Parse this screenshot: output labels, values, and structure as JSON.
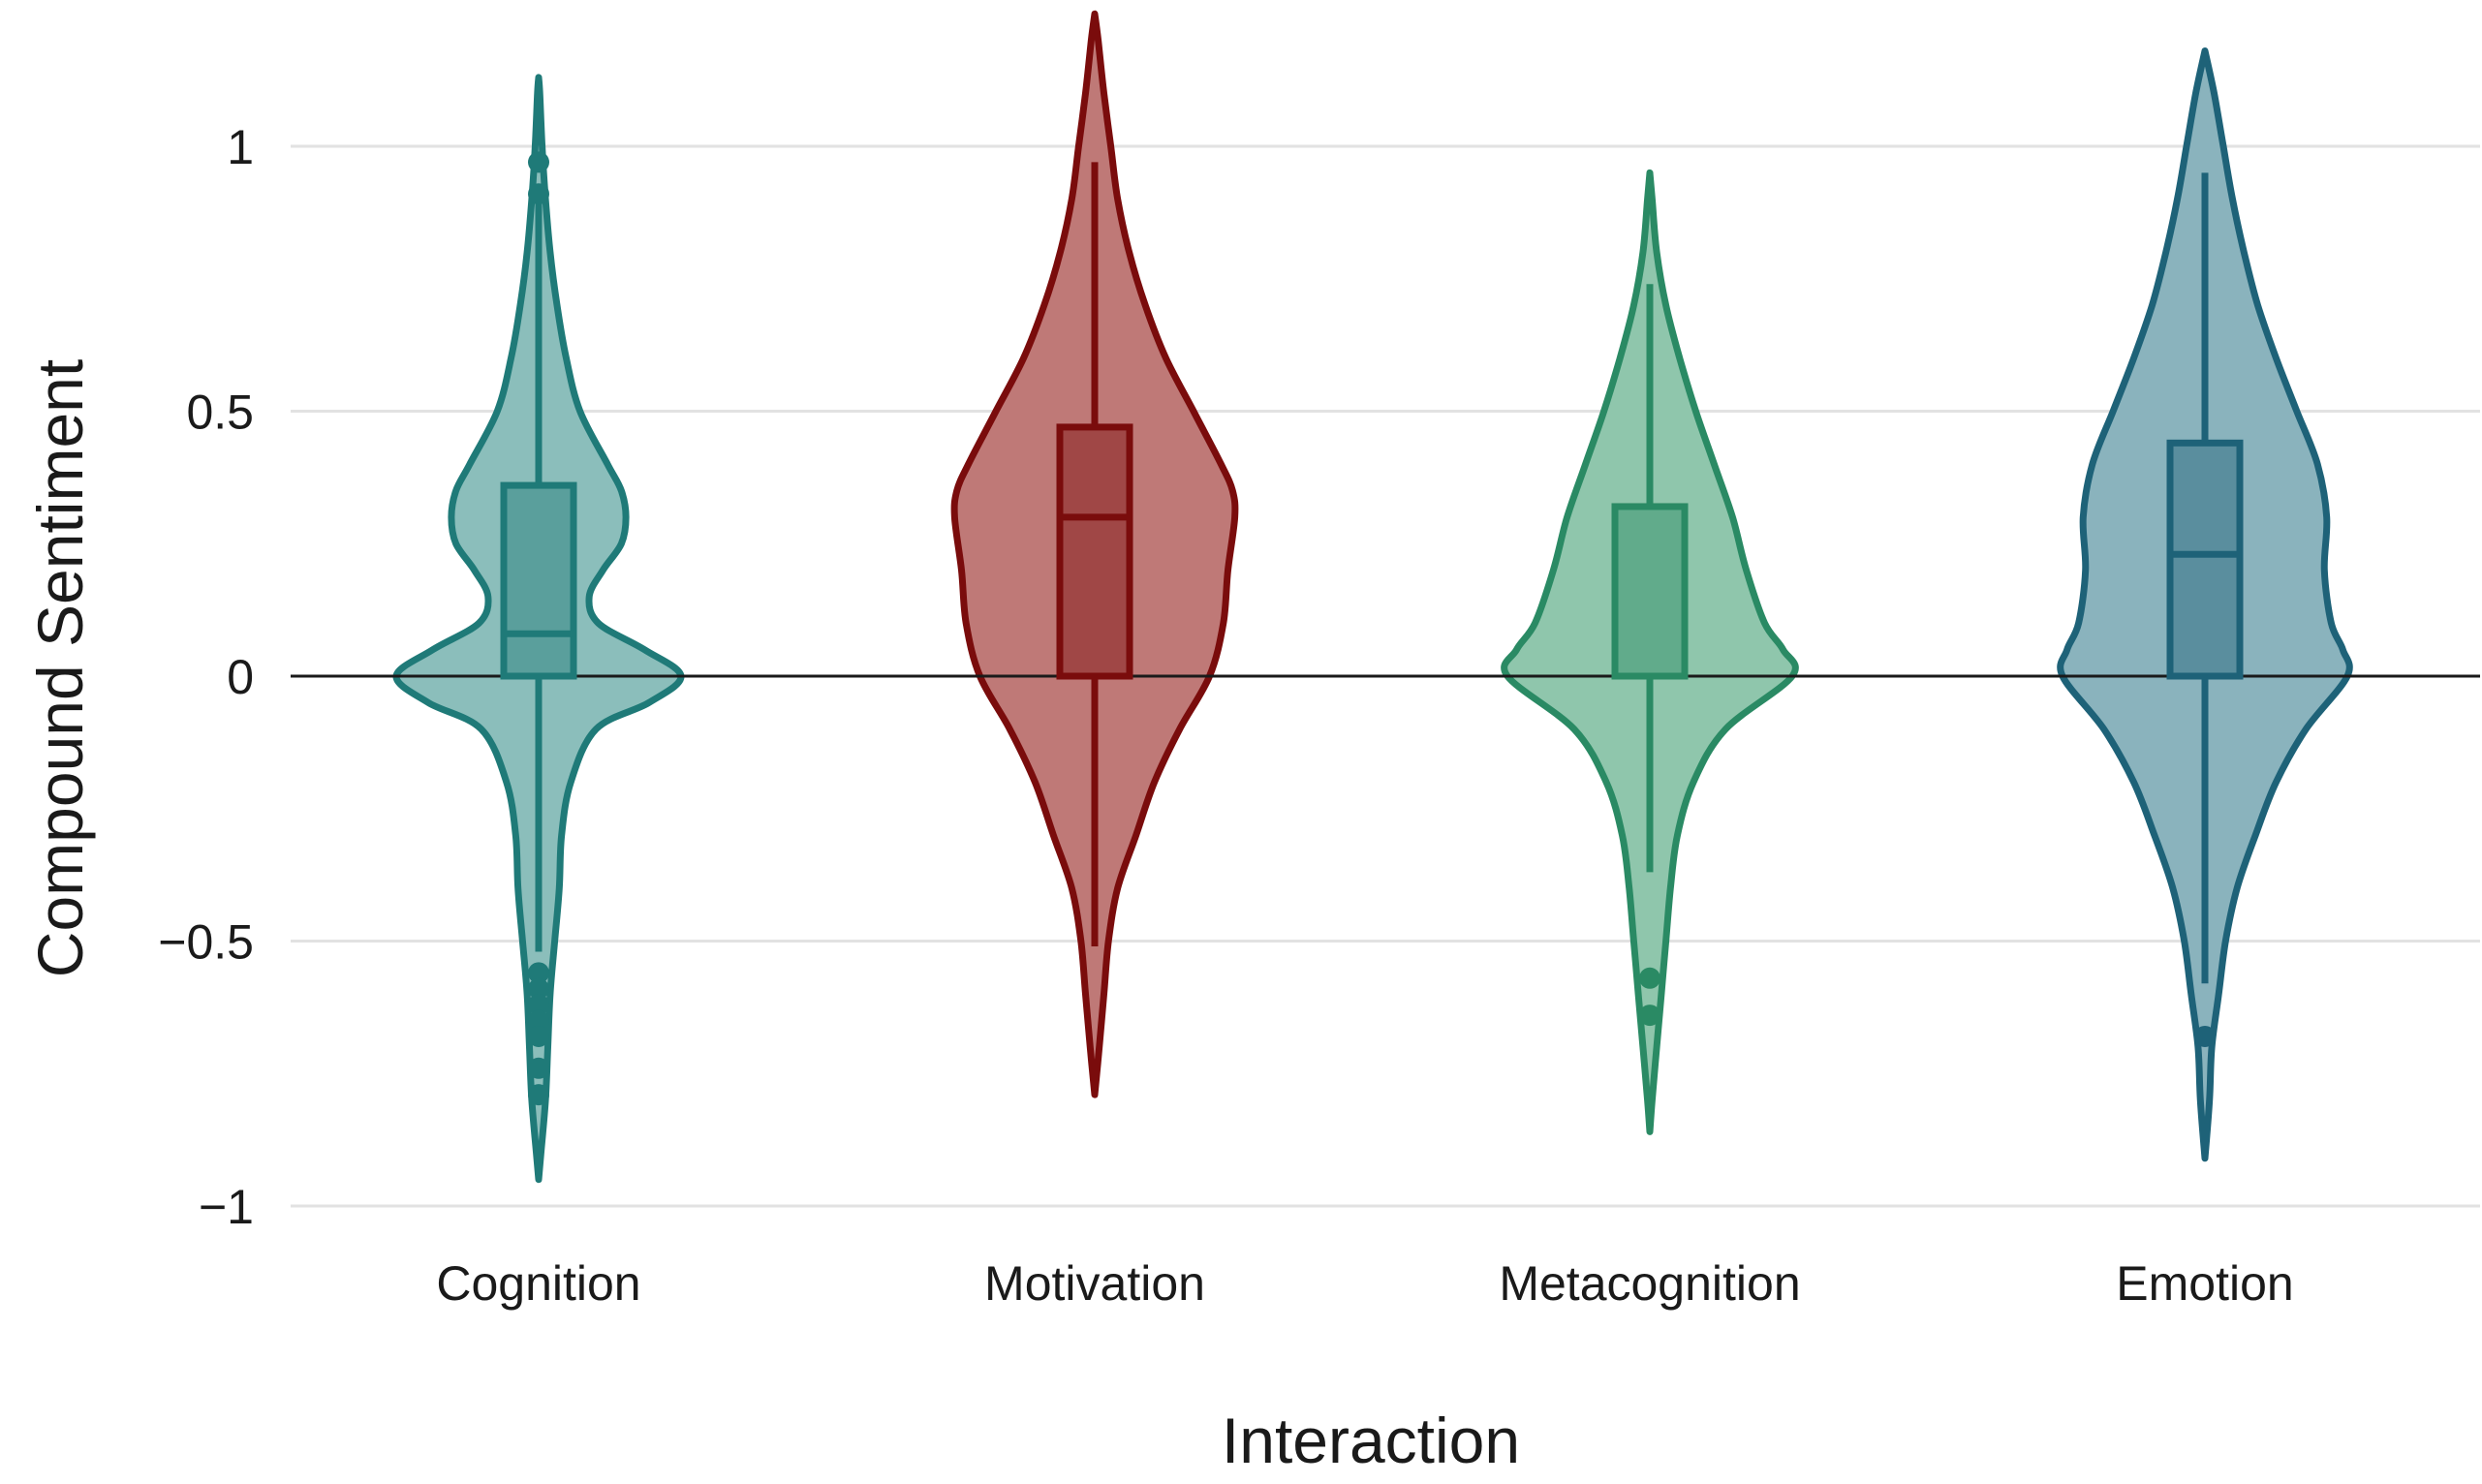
{
  "chart_data": {
    "type": "violin",
    "title": "",
    "xlabel": "Interaction",
    "ylabel": "Compound Sentiment",
    "ylim": [
      -1.0,
      1.25
    ],
    "yticks": [
      {
        "value": 1,
        "label": "1"
      },
      {
        "value": 0.5,
        "label": "0.5"
      },
      {
        "value": 0,
        "label": "0"
      },
      {
        "value": -0.5,
        "label": "−0.5"
      },
      {
        "value": -1,
        "label": "−1"
      }
    ],
    "grid": true,
    "legend": "none",
    "categories": [
      "Cognition",
      "Motivation",
      "Metacognition",
      "Emotion"
    ],
    "series": [
      {
        "name": "Cognition",
        "color": "#1f7a78",
        "fill": "#8bbebb",
        "box": {
          "q1": 0.0,
          "median": 0.08,
          "q3": 0.36,
          "whisker_low": -0.52,
          "whisker_high": 0.9
        },
        "outliers": [
          0.97,
          0.91,
          -0.56,
          -0.59,
          -0.62,
          -0.65,
          -0.68,
          -0.74,
          -0.79
        ],
        "density": [
          [
            -0.95,
            0.0
          ],
          [
            -0.9,
            0.01
          ],
          [
            -0.8,
            0.03
          ],
          [
            -0.7,
            0.04
          ],
          [
            -0.6,
            0.05
          ],
          [
            -0.5,
            0.07
          ],
          [
            -0.4,
            0.09
          ],
          [
            -0.3,
            0.1
          ],
          [
            -0.2,
            0.14
          ],
          [
            -0.1,
            0.25
          ],
          [
            -0.05,
            0.48
          ],
          [
            0.0,
            0.62
          ],
          [
            0.05,
            0.46
          ],
          [
            0.1,
            0.26
          ],
          [
            0.15,
            0.22
          ],
          [
            0.2,
            0.28
          ],
          [
            0.25,
            0.36
          ],
          [
            0.3,
            0.38
          ],
          [
            0.35,
            0.36
          ],
          [
            0.4,
            0.3
          ],
          [
            0.5,
            0.18
          ],
          [
            0.6,
            0.12
          ],
          [
            0.7,
            0.08
          ],
          [
            0.8,
            0.05
          ],
          [
            0.9,
            0.03
          ],
          [
            1.0,
            0.015
          ],
          [
            1.1,
            0.005
          ],
          [
            1.13,
            0.0
          ]
        ]
      },
      {
        "name": "Motivation",
        "color": "#7a0c0c",
        "fill": "#bf7977",
        "box": {
          "q1": 0.0,
          "median": 0.3,
          "q3": 0.47,
          "whisker_low": -0.51,
          "whisker_high": 0.97
        },
        "outliers": [],
        "density": [
          [
            -0.79,
            0.0
          ],
          [
            -0.7,
            0.02
          ],
          [
            -0.6,
            0.04
          ],
          [
            -0.5,
            0.06
          ],
          [
            -0.4,
            0.1
          ],
          [
            -0.3,
            0.18
          ],
          [
            -0.2,
            0.26
          ],
          [
            -0.1,
            0.37
          ],
          [
            0.0,
            0.5
          ],
          [
            0.1,
            0.56
          ],
          [
            0.2,
            0.58
          ],
          [
            0.3,
            0.61
          ],
          [
            0.35,
            0.6
          ],
          [
            0.4,
            0.55
          ],
          [
            0.5,
            0.43
          ],
          [
            0.6,
            0.31
          ],
          [
            0.7,
            0.22
          ],
          [
            0.8,
            0.15
          ],
          [
            0.9,
            0.1
          ],
          [
            1.0,
            0.07
          ],
          [
            1.1,
            0.04
          ],
          [
            1.2,
            0.015
          ],
          [
            1.25,
            0.0
          ]
        ]
      },
      {
        "name": "Metacognition",
        "color": "#2a8a64",
        "fill": "#8fc6ac",
        "box": {
          "q1": 0.0,
          "median": 0.0,
          "q3": 0.32,
          "whisker_low": -0.37,
          "whisker_high": 0.74
        },
        "outliers": [
          -0.57,
          -0.64
        ],
        "density": [
          [
            -0.86,
            0.0
          ],
          [
            -0.8,
            0.01
          ],
          [
            -0.7,
            0.03
          ],
          [
            -0.6,
            0.05
          ],
          [
            -0.5,
            0.07
          ],
          [
            -0.4,
            0.09
          ],
          [
            -0.3,
            0.12
          ],
          [
            -0.2,
            0.19
          ],
          [
            -0.1,
            0.33
          ],
          [
            0.0,
            0.62
          ],
          [
            0.05,
            0.58
          ],
          [
            0.1,
            0.5
          ],
          [
            0.2,
            0.42
          ],
          [
            0.3,
            0.36
          ],
          [
            0.4,
            0.28
          ],
          [
            0.5,
            0.2
          ],
          [
            0.6,
            0.13
          ],
          [
            0.7,
            0.07
          ],
          [
            0.8,
            0.03
          ],
          [
            0.9,
            0.01
          ],
          [
            0.95,
            0.0
          ]
        ]
      },
      {
        "name": "Emotion",
        "color": "#1e6278",
        "fill": "#8ab3bd",
        "box": {
          "q1": 0.0,
          "median": 0.23,
          "q3": 0.44,
          "whisker_low": -0.58,
          "whisker_high": 0.95
        },
        "outliers": [
          -0.68
        ],
        "density": [
          [
            -0.91,
            0.0
          ],
          [
            -0.8,
            0.02
          ],
          [
            -0.7,
            0.03
          ],
          [
            -0.6,
            0.06
          ],
          [
            -0.5,
            0.09
          ],
          [
            -0.4,
            0.14
          ],
          [
            -0.3,
            0.22
          ],
          [
            -0.2,
            0.31
          ],
          [
            -0.1,
            0.44
          ],
          [
            0.0,
            0.62
          ],
          [
            0.05,
            0.6
          ],
          [
            0.1,
            0.55
          ],
          [
            0.2,
            0.52
          ],
          [
            0.3,
            0.53
          ],
          [
            0.4,
            0.49
          ],
          [
            0.5,
            0.4
          ],
          [
            0.6,
            0.31
          ],
          [
            0.7,
            0.23
          ],
          [
            0.8,
            0.17
          ],
          [
            0.9,
            0.12
          ],
          [
            1.0,
            0.08
          ],
          [
            1.1,
            0.04
          ],
          [
            1.18,
            0.0
          ]
        ]
      }
    ]
  }
}
